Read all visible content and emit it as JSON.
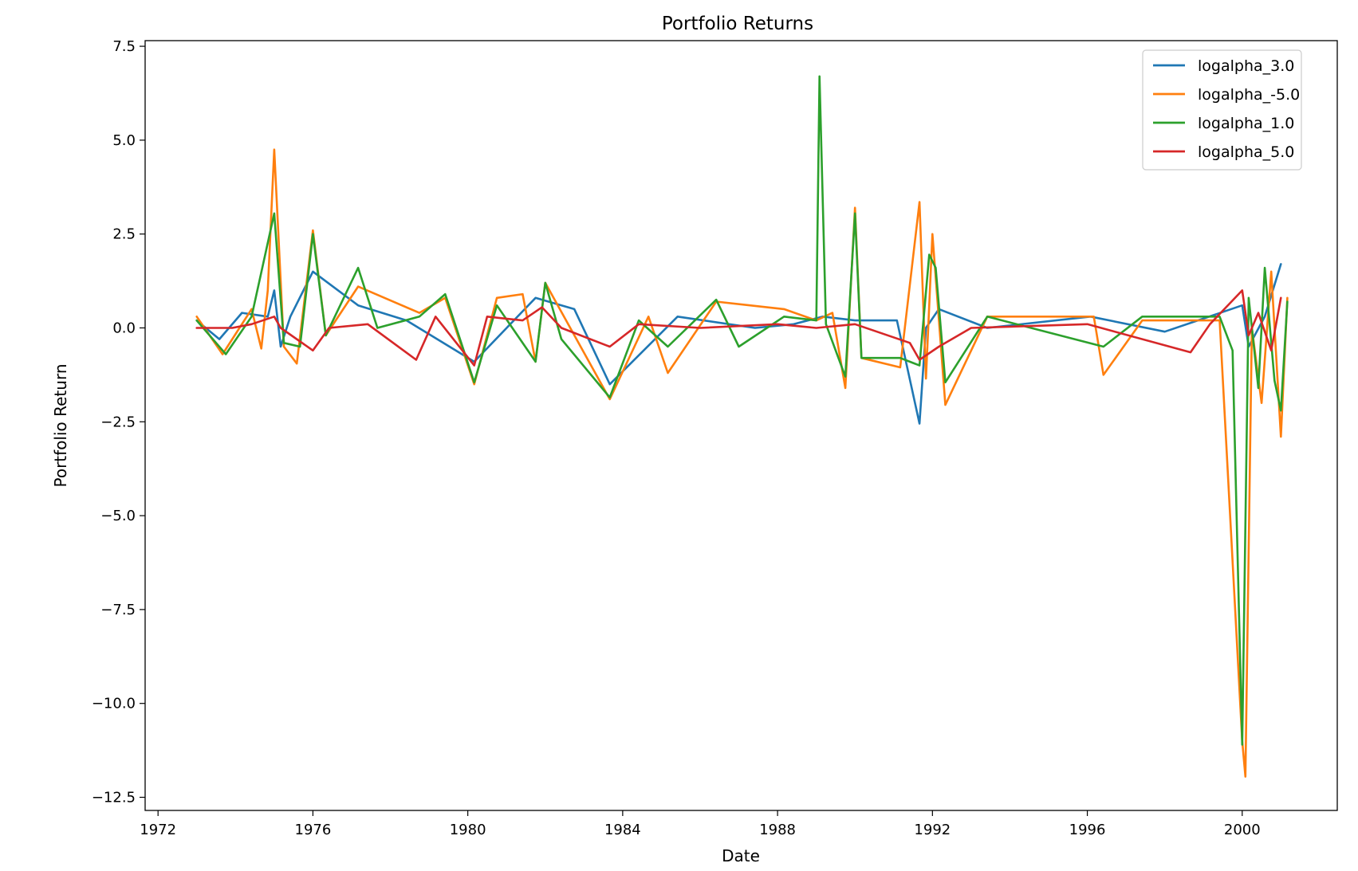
{
  "chart_data": {
    "type": "line",
    "title": "Portfolio Returns",
    "xlabel": "Date",
    "ylabel": "Portfolio Return",
    "xlim": [
      "1971-09-01",
      "2002-06-15"
    ],
    "ylim": [
      -12.85,
      7.65
    ],
    "x_ticks": [
      "1972",
      "1976",
      "1980",
      "1984",
      "1988",
      "1992",
      "1996",
      "2000"
    ],
    "y_ticks": [
      7.5,
      5.0,
      2.5,
      0.0,
      -2.5,
      -5.0,
      -7.5,
      -10.0,
      -12.5
    ],
    "y_tick_labels": [
      "7.5",
      "5.0",
      "2.5",
      "0.0",
      "−2.5",
      "−5.0",
      "−7.5",
      "−10.0",
      "−12.5"
    ],
    "grid": false,
    "legend_position": "upper right",
    "series": [
      {
        "name": "logalpha_3.0",
        "color": "#1f77b4",
        "points": [
          [
            "1973-01",
            0.2
          ],
          [
            "1973-08",
            -0.3
          ],
          [
            "1974-03",
            0.4
          ],
          [
            "1974-11",
            0.3
          ],
          [
            "1975-01",
            1.0
          ],
          [
            "1975-03",
            -0.5
          ],
          [
            "1975-06",
            0.3
          ],
          [
            "1976-01",
            1.5
          ],
          [
            "1977-03",
            0.6
          ],
          [
            "1978-06",
            0.2
          ],
          [
            "1980-03",
            -0.9
          ],
          [
            "1981-10",
            0.8
          ],
          [
            "1982-10",
            0.5
          ],
          [
            "1983-09",
            -1.5
          ],
          [
            "1985-06",
            0.3
          ],
          [
            "1987-06",
            0.0
          ],
          [
            "1988-06",
            0.1
          ],
          [
            "1989-03",
            0.3
          ],
          [
            "1990-01",
            0.2
          ],
          [
            "1991-02",
            0.2
          ],
          [
            "1991-09",
            -2.55
          ],
          [
            "1991-11",
            0.0
          ],
          [
            "1992-03",
            0.5
          ],
          [
            "1993-06",
            0.0
          ],
          [
            "1996-02",
            0.3
          ],
          [
            "1998-01",
            -0.1
          ],
          [
            "2000-01",
            0.6
          ],
          [
            "2000-03",
            -0.5
          ],
          [
            "2000-08",
            0.3
          ],
          [
            "2001-01",
            1.7
          ]
        ]
      },
      {
        "name": "logalpha_-5.0",
        "color": "#ff7f0e",
        "points": [
          [
            "1973-01",
            0.3
          ],
          [
            "1973-09",
            -0.7
          ],
          [
            "1974-06",
            0.5
          ],
          [
            "1974-09",
            -0.55
          ],
          [
            "1974-11",
            1.0
          ],
          [
            "1975-01",
            4.75
          ],
          [
            "1975-04",
            -0.5
          ],
          [
            "1975-08",
            -0.95
          ],
          [
            "1976-01",
            2.6
          ],
          [
            "1976-05",
            -0.2
          ],
          [
            "1977-03",
            1.1
          ],
          [
            "1978-10",
            0.4
          ],
          [
            "1979-06",
            0.8
          ],
          [
            "1980-03",
            -1.5
          ],
          [
            "1980-10",
            0.8
          ],
          [
            "1981-06",
            0.9
          ],
          [
            "1981-10",
            -0.9
          ],
          [
            "1982-01",
            1.2
          ],
          [
            "1983-09",
            -1.9
          ],
          [
            "1984-09",
            0.3
          ],
          [
            "1985-03",
            -1.2
          ],
          [
            "1986-06",
            0.7
          ],
          [
            "1988-03",
            0.5
          ],
          [
            "1989-01",
            0.2
          ],
          [
            "1989-06",
            0.4
          ],
          [
            "1989-10",
            -1.6
          ],
          [
            "1990-01",
            3.2
          ],
          [
            "1990-03",
            -0.8
          ],
          [
            "1991-03",
            -1.05
          ],
          [
            "1991-09",
            3.35
          ],
          [
            "1991-11",
            -1.35
          ],
          [
            "1992-01",
            2.5
          ],
          [
            "1992-05",
            -2.05
          ],
          [
            "1993-06",
            0.3
          ],
          [
            "1996-03",
            0.3
          ],
          [
            "1996-06",
            -1.25
          ],
          [
            "1997-06",
            0.2
          ],
          [
            "1999-06",
            0.2
          ],
          [
            "2000-01",
            -11.0
          ],
          [
            "2000-02",
            -11.95
          ],
          [
            "2000-04",
            0.0
          ],
          [
            "2000-07",
            -2.0
          ],
          [
            "2000-10",
            1.5
          ],
          [
            "2001-01",
            -2.9
          ],
          [
            "2001-03",
            0.8
          ]
        ]
      },
      {
        "name": "logalpha_1.0",
        "color": "#2ca02c",
        "points": [
          [
            "1973-01",
            0.2
          ],
          [
            "1973-10",
            -0.7
          ],
          [
            "1974-06",
            0.3
          ],
          [
            "1975-01",
            3.05
          ],
          [
            "1975-04",
            -0.4
          ],
          [
            "1975-09",
            -0.5
          ],
          [
            "1976-01",
            2.5
          ],
          [
            "1976-05",
            -0.2
          ],
          [
            "1977-03",
            1.6
          ],
          [
            "1977-09",
            0.0
          ],
          [
            "1978-10",
            0.3
          ],
          [
            "1979-06",
            0.9
          ],
          [
            "1980-03",
            -1.45
          ],
          [
            "1980-10",
            0.6
          ],
          [
            "1981-10",
            -0.9
          ],
          [
            "1982-01",
            1.2
          ],
          [
            "1982-06",
            -0.3
          ],
          [
            "1983-09",
            -1.85
          ],
          [
            "1984-06",
            0.2
          ],
          [
            "1985-03",
            -0.5
          ],
          [
            "1986-06",
            0.75
          ],
          [
            "1987-01",
            -0.5
          ],
          [
            "1988-03",
            0.3
          ],
          [
            "1989-01",
            0.2
          ],
          [
            "1989-02",
            6.7
          ],
          [
            "1989-04",
            0.1
          ],
          [
            "1989-10",
            -1.3
          ],
          [
            "1990-01",
            3.05
          ],
          [
            "1990-03",
            -0.8
          ],
          [
            "1991-03",
            -0.8
          ],
          [
            "1991-09",
            -1.0
          ],
          [
            "1991-12",
            1.95
          ],
          [
            "1992-02",
            1.6
          ],
          [
            "1992-05",
            -1.45
          ],
          [
            "1993-06",
            0.3
          ],
          [
            "1996-06",
            -0.5
          ],
          [
            "1997-06",
            0.3
          ],
          [
            "1999-06",
            0.3
          ],
          [
            "1999-10",
            -0.6
          ],
          [
            "2000-01",
            -11.1
          ],
          [
            "2000-03",
            0.8
          ],
          [
            "2000-06",
            -1.6
          ],
          [
            "2000-08",
            1.6
          ],
          [
            "2000-11",
            -1.4
          ],
          [
            "2001-01",
            -2.2
          ],
          [
            "2001-03",
            0.7
          ]
        ]
      },
      {
        "name": "logalpha_5.0",
        "color": "#d62728",
        "points": [
          [
            "1973-01",
            0.0
          ],
          [
            "1973-12",
            0.0
          ],
          [
            "1974-06",
            0.1
          ],
          [
            "1975-01",
            0.3
          ],
          [
            "1975-03",
            0.0
          ],
          [
            "1976-01",
            -0.6
          ],
          [
            "1976-06",
            0.0
          ],
          [
            "1977-06",
            0.1
          ],
          [
            "1978-09",
            -0.85
          ],
          [
            "1979-03",
            0.3
          ],
          [
            "1980-03",
            -1.0
          ],
          [
            "1980-07",
            0.3
          ],
          [
            "1981-06",
            0.2
          ],
          [
            "1981-12",
            0.55
          ],
          [
            "1982-06",
            0.0
          ],
          [
            "1983-09",
            -0.5
          ],
          [
            "1984-06",
            0.1
          ],
          [
            "1986-01",
            0.0
          ],
          [
            "1988-01",
            0.1
          ],
          [
            "1989-01",
            0.0
          ],
          [
            "1990-01",
            0.1
          ],
          [
            "1991-06",
            -0.4
          ],
          [
            "1991-09",
            -0.85
          ],
          [
            "1992-03",
            -0.5
          ],
          [
            "1993-01",
            0.0
          ],
          [
            "1996-01",
            0.1
          ],
          [
            "1998-09",
            -0.65
          ],
          [
            "1999-03",
            0.1
          ],
          [
            "2000-01",
            1.0
          ],
          [
            "2000-03",
            -0.2
          ],
          [
            "2000-06",
            0.4
          ],
          [
            "2000-10",
            -0.6
          ],
          [
            "2001-01",
            0.8
          ]
        ]
      }
    ]
  }
}
